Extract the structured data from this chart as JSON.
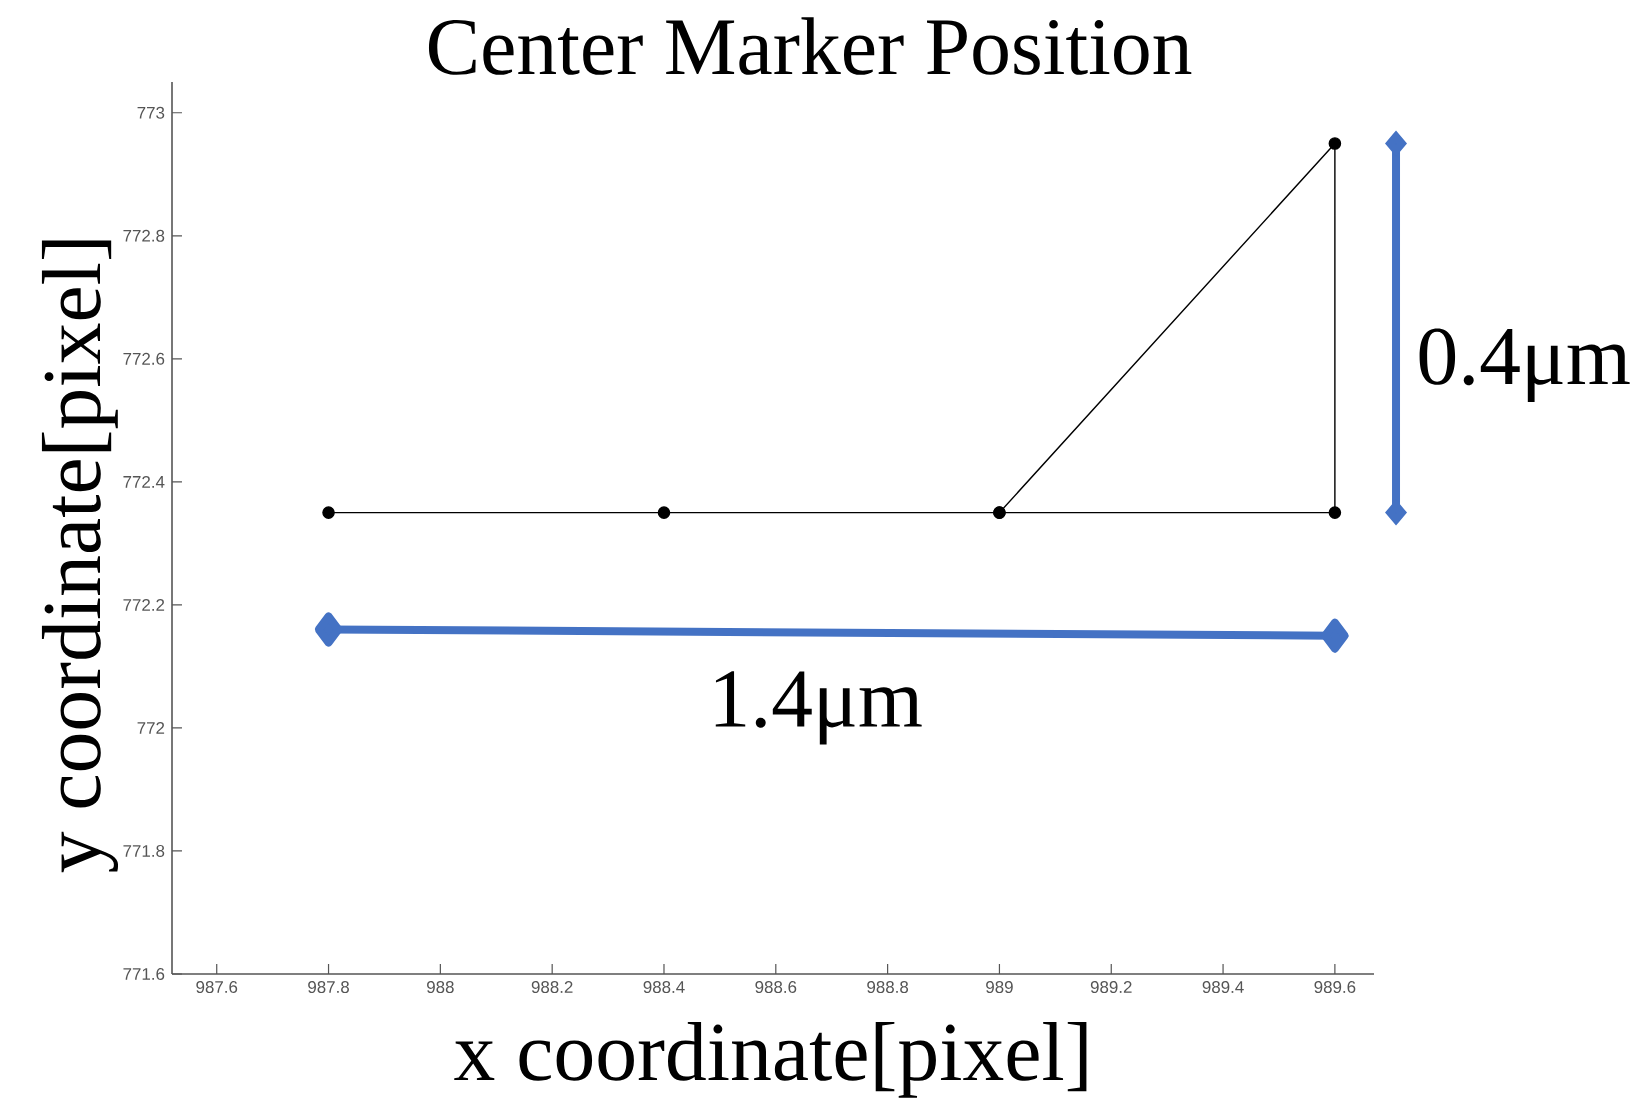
{
  "chart_data": {
    "type": "line",
    "title": "Center Marker Position",
    "xlabel": "x coordinate[pixel]",
    "ylabel": "y coordinate[pixel]",
    "x": [
      987.8,
      988.4,
      989.0,
      989.6,
      989.6,
      989.0
    ],
    "series": [
      {
        "color": "#000000",
        "values": [
          772.35,
          772.35,
          772.35,
          772.35,
          772.95,
          772.35
        ]
      },
      {
        "name": "1.4μm",
        "color": "#4472c4",
        "x": [
          987.8,
          989.6
        ],
        "values": [
          772.16,
          772.15
        ],
        "marker": "diamond"
      }
    ],
    "marker": "circle",
    "line_style": "solid",
    "xlim": [
      987.52,
      989.67
    ],
    "ylim": [
      771.6,
      773.05
    ],
    "xticks": [
      987.6,
      987.8,
      988,
      988.2,
      988.4,
      988.6,
      988.8,
      989,
      989.2,
      989.4,
      989.6
    ],
    "yticks": [
      771.6,
      771.8,
      772,
      772.2,
      772.4,
      772.6,
      772.8,
      773
    ],
    "annotations": [
      "0.4μm"
    ]
  }
}
